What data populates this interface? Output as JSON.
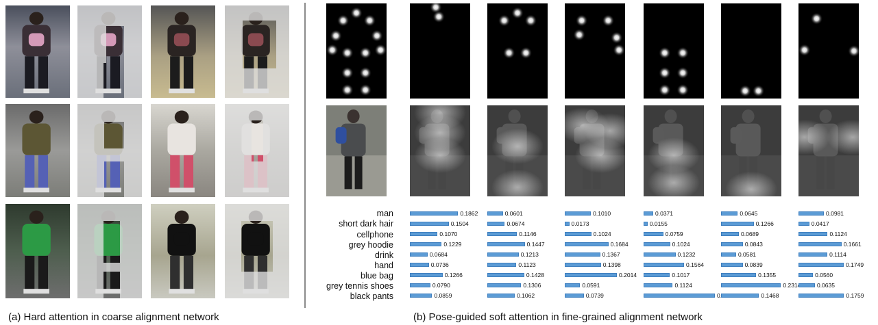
{
  "captions": {
    "left": "(a) Hard attention in coarse alignment network",
    "right": "(b) Pose-guided soft attention in fine-grained alignment network"
  },
  "attributes": [
    "man",
    "short dark hair",
    "cellphone",
    "grey hoodie",
    "drink",
    "hand",
    "blue bag",
    "grey tennis shoes",
    "black pants"
  ],
  "chart_data": {
    "type": "bar",
    "orientation": "horizontal",
    "categories": [
      "man",
      "short dark hair",
      "cellphone",
      "grey hoodie",
      "drink",
      "hand",
      "blue bag",
      "grey tennis shoes",
      "black pants"
    ],
    "series": [
      {
        "values": [
          0.1862,
          0.1504,
          0.107,
          0.1229,
          0.0684,
          0.0736,
          0.1266,
          0.079,
          0.0859
        ]
      },
      {
        "values": [
          0.0601,
          0.0674,
          0.1146,
          0.1447,
          0.1213,
          0.1123,
          0.1428,
          0.1306,
          0.1062
        ]
      },
      {
        "values": [
          0.101,
          0.0173,
          0.1024,
          0.1684,
          0.1367,
          0.1398,
          0.2014,
          0.0591,
          0.0739
        ]
      },
      {
        "values": [
          0.0371,
          0.0155,
          0.0759,
          0.1024,
          0.1232,
          0.1564,
          0.1017,
          0.1124,
          0.2754
        ]
      },
      {
        "values": [
          0.0645,
          0.1266,
          0.0689,
          0.0843,
          0.0581,
          0.0839,
          0.1355,
          0.2314,
          0.1468
        ]
      },
      {
        "values": [
          0.0981,
          0.0417,
          0.1124,
          0.1661,
          0.1114,
          0.1749,
          0.056,
          0.0635,
          0.1759
        ]
      }
    ],
    "labels": [
      [
        "0.1862",
        "0.1504",
        "0.1070",
        "0.1229",
        "0.0684",
        "0.0736",
        "0.1266",
        "0.0790",
        "0.0859"
      ],
      [
        "0.0601",
        "0.0674",
        "0.1146",
        "0.1447",
        "0.1213",
        "0.1123",
        "0.1428",
        "0.1306",
        "0.1062"
      ],
      [
        "0.1010",
        "0.0173",
        "0.1024",
        "0.1684",
        "0.1367",
        "0.1398",
        "0.2014",
        "0.0591",
        "0.0739"
      ],
      [
        "0.0371",
        "0.0155",
        "0.0759",
        "0.1024",
        "0.1232",
        "0.1564",
        "0.1017",
        "0.1124",
        "0.2754"
      ],
      [
        "0.0645",
        "0.1266",
        "0.0689",
        "0.0843",
        "0.0581",
        "0.0839",
        "0.1355",
        "0.2314",
        "0.1468"
      ],
      [
        "0.0981",
        "0.0417",
        "0.1124",
        "0.1661",
        "0.1114",
        "0.1749",
        "0.0560",
        "0.0635",
        "0.1759"
      ]
    ],
    "xlim": [
      0,
      0.2754
    ],
    "legend": "none",
    "grid": false
  }
}
